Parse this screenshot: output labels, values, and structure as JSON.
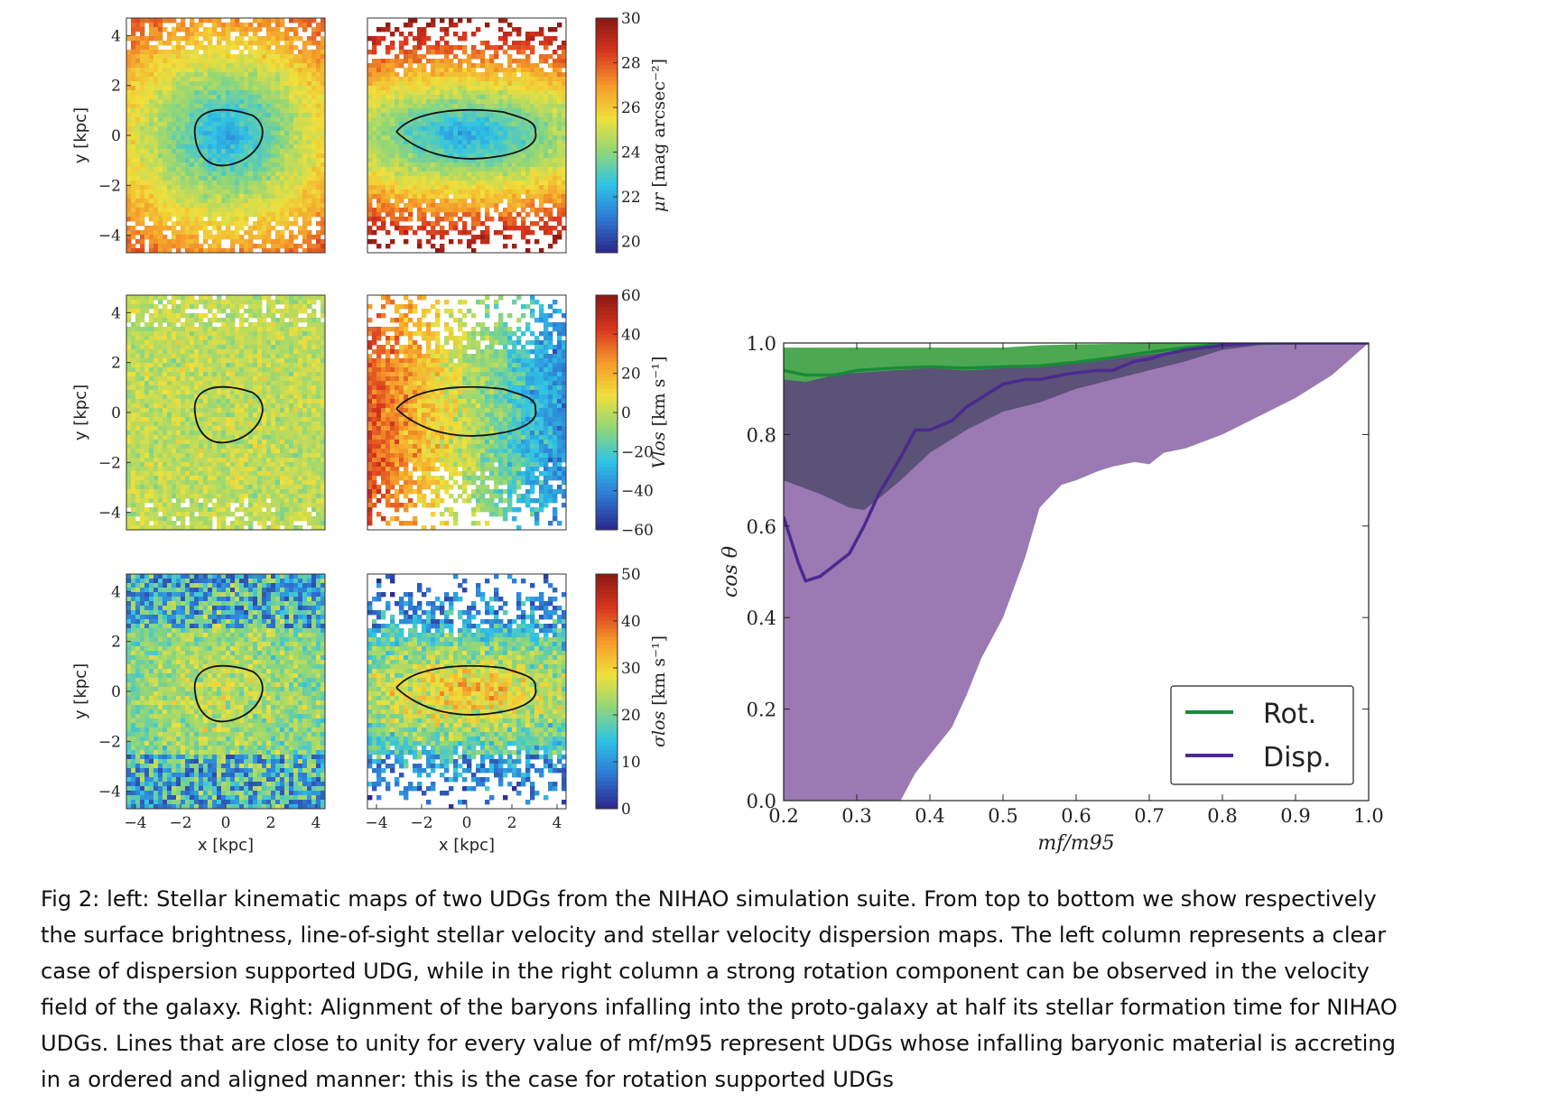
{
  "maps": {
    "panels": [
      {
        "row": "surface-brightness",
        "column": "left"
      },
      {
        "row": "surface-brightness",
        "column": "right"
      },
      {
        "row": "velocity",
        "column": "left"
      },
      {
        "row": "velocity",
        "column": "right"
      },
      {
        "row": "dispersion",
        "column": "left"
      },
      {
        "row": "dispersion",
        "column": "right"
      }
    ],
    "xticks": [
      "−4",
      "−2",
      "0",
      "2",
      "4"
    ],
    "yticks": [
      "4",
      "2",
      "0",
      "−2",
      "−4"
    ],
    "xlabel": "x [kpc]",
    "ylabel": "y [kpc]",
    "colorbars": [
      {
        "name": "surface-brightness",
        "ticks": [
          "30",
          "28",
          "26",
          "24",
          "22",
          "20"
        ],
        "label_symbol": "μr",
        "label_unit": "[mag arcsec⁻²]",
        "range": [
          19.5,
          30
        ],
        "colors": [
          "#2c2b8f",
          "#2e7ad4",
          "#2fc3e6",
          "#8fd67a",
          "#f0e03c",
          "#f59b2a",
          "#d9371f",
          "#8e1a14"
        ]
      },
      {
        "name": "velocity",
        "ticks": [
          "60",
          "40",
          "20",
          "0",
          "−20",
          "−40",
          "−60"
        ],
        "label_symbol": "Vlos",
        "label_unit": "[km s⁻¹]",
        "range": [
          -60,
          60
        ],
        "colors": [
          "#2c2b8f",
          "#2e7ad4",
          "#2fc3e6",
          "#8fd67a",
          "#f0e03c",
          "#f59b2a",
          "#d9371f",
          "#8e1a14"
        ]
      },
      {
        "name": "dispersion",
        "ticks": [
          "50",
          "40",
          "30",
          "20",
          "10",
          "0"
        ],
        "label_symbol": "σlos",
        "label_unit": "[km s⁻¹]",
        "range": [
          0,
          50
        ],
        "colors": [
          "#2c2b8f",
          "#2e7ad4",
          "#2fc3e6",
          "#8fd67a",
          "#f0e03c",
          "#f59b2a",
          "#d9371f",
          "#8e1a14"
        ]
      }
    ]
  },
  "chart_data": {
    "type": "line",
    "xlabel": "mf/m95",
    "ylabel": "cos θ",
    "xlim": [
      0.2,
      1.0
    ],
    "ylim": [
      0.0,
      1.0
    ],
    "xticks": [
      "0.2",
      "0.3",
      "0.4",
      "0.5",
      "0.6",
      "0.7",
      "0.8",
      "0.9",
      "1.0"
    ],
    "yticks": [
      "0.0",
      "0.2",
      "0.4",
      "0.6",
      "0.8",
      "1.0"
    ],
    "legend_position": "bottom-right",
    "series": [
      {
        "name": "Rot.",
        "color": "#1a8a3a",
        "band_color": "#4ca952",
        "x": [
          0.2,
          0.23,
          0.27,
          0.3,
          0.35,
          0.4,
          0.45,
          0.5,
          0.55,
          0.6,
          0.65,
          0.7,
          0.75,
          0.8,
          0.85,
          0.9,
          0.95,
          1.0
        ],
        "line": [
          0.94,
          0.93,
          0.93,
          0.94,
          0.945,
          0.948,
          0.945,
          0.948,
          0.95,
          0.958,
          0.968,
          0.98,
          0.99,
          0.998,
          0.999,
          1.0,
          1.0,
          1.0
        ],
        "band_upper": [
          0.99,
          0.99,
          0.99,
          0.99,
          0.99,
          0.99,
          0.99,
          0.99,
          0.995,
          0.997,
          0.998,
          0.999,
          1.0,
          1.0,
          1.0,
          1.0,
          1.0,
          1.0
        ],
        "band_lower": [
          0.92,
          0.915,
          0.93,
          0.935,
          0.94,
          0.945,
          0.94,
          0.945,
          0.948,
          0.955,
          0.965,
          0.975,
          0.985,
          0.993,
          0.997,
          0.999,
          1.0,
          1.0
        ]
      },
      {
        "name": "Disp.",
        "color": "#4b2a8e",
        "band_color": "#9b79b3",
        "x": [
          0.2,
          0.22,
          0.23,
          0.25,
          0.29,
          0.31,
          0.33,
          0.36,
          0.38,
          0.4,
          0.43,
          0.45,
          0.47,
          0.5,
          0.53,
          0.55,
          0.58,
          0.6,
          0.63,
          0.65,
          0.68,
          0.7,
          0.72,
          0.75,
          0.8,
          0.85,
          0.9,
          0.95,
          1.0
        ],
        "line": [
          0.62,
          0.52,
          0.48,
          0.49,
          0.54,
          0.6,
          0.67,
          0.75,
          0.81,
          0.81,
          0.83,
          0.86,
          0.88,
          0.91,
          0.92,
          0.92,
          0.93,
          0.935,
          0.94,
          0.94,
          0.96,
          0.965,
          0.975,
          0.985,
          0.995,
          1.0,
          1.0,
          1.0,
          1.0
        ],
        "band_upper": [
          0.98,
          0.975,
          0.975,
          0.975,
          0.975,
          0.975,
          0.975,
          0.975,
          0.975,
          0.975,
          0.98,
          0.98,
          0.98,
          0.98,
          0.985,
          0.985,
          0.99,
          0.99,
          0.99,
          0.995,
          0.995,
          0.997,
          0.998,
          0.999,
          1.0,
          1.0,
          1.0,
          1.0,
          1.0
        ],
        "band_lower": [
          0.0,
          0.0,
          0.0,
          0.0,
          0.0,
          0.0,
          0.0,
          0.0,
          0.06,
          0.1,
          0.16,
          0.23,
          0.31,
          0.4,
          0.53,
          0.64,
          0.69,
          0.7,
          0.72,
          0.73,
          0.74,
          0.735,
          0.76,
          0.77,
          0.8,
          0.84,
          0.88,
          0.93,
          1.0
        ]
      }
    ]
  },
  "caption": {
    "lines": [
      "Fig 2: left: Stellar kinematic maps of two UDGs from the NIHAO simulation suite. From top to bottom we show respectively",
      "the surface brightness, line-of-sight stellar velocity and stellar velocity dispersion maps. The left column represents a clear",
      "case of dispersion supported UDG, while in the right column a strong rotation component can be observed in the velocity",
      "field of the galaxy. Right: Alignment of the baryons infalling into the proto-galaxy at half its stellar formation time for NIHAO",
      "UDGs. Lines that are close to unity for every value of mf/m95 represent UDGs whose infalling baryonic material is accreting",
      "in a ordered and aligned manner: this is the case for rotation supported UDGs"
    ]
  }
}
